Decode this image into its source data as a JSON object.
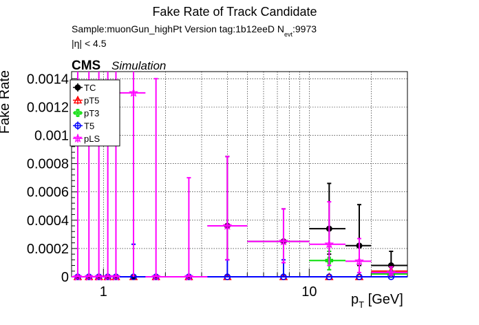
{
  "chart_data": {
    "type": "scatter",
    "title": "Fake Rate of Track Candidate",
    "subtitle_line1": "Sample:muonGun_highPt   Version tag:1b12eeD  N",
    "subtitle_nevt_sub": "evt",
    "subtitle_nevt_val": ":9973",
    "subtitle_line2": "|η| < 4.5",
    "cms_label": "CMS",
    "simulation_label": "Simulation",
    "ylabel": "Fake Rate",
    "xlabel_main": "p",
    "xlabel_sub": "T",
    "xlabel_unit": " [GeV]",
    "xscale": "log",
    "xlim": [
      0.7,
      30
    ],
    "ylim": [
      0,
      0.00145
    ],
    "grid": true,
    "legend_placement": "top-left",
    "y_ticks": [
      {
        "v": 0,
        "label": "0"
      },
      {
        "v": 0.0002,
        "label": "0.0002"
      },
      {
        "v": 0.0004,
        "label": "0.0004"
      },
      {
        "v": 0.0006,
        "label": "0.0006"
      },
      {
        "v": 0.0008,
        "label": "0.0008"
      },
      {
        "v": 0.001,
        "label": "0.001"
      },
      {
        "v": 0.0012,
        "label": "0.0012"
      },
      {
        "v": 0.0014,
        "label": "0.0014"
      }
    ],
    "x_ticks": [
      {
        "v": 1,
        "label": "1"
      },
      {
        "v": 10,
        "label": "10"
      }
    ],
    "series": [
      {
        "name": "TC",
        "color": "#000000",
        "marker": "filled-circle",
        "points": [
          {
            "x": 0.75,
            "xlo": 0.7,
            "xhi": 0.8,
            "y": 0,
            "ylo": 0,
            "yhi": 0
          },
          {
            "x": 0.85,
            "xlo": 0.8,
            "xhi": 0.9,
            "y": 0,
            "ylo": 0,
            "yhi": 0
          },
          {
            "x": 0.95,
            "xlo": 0.9,
            "xhi": 1.0,
            "y": 0,
            "ylo": 0,
            "yhi": 0
          },
          {
            "x": 1.05,
            "xlo": 1.0,
            "xhi": 1.1,
            "y": 0,
            "ylo": 0,
            "yhi": 0
          },
          {
            "x": 1.15,
            "xlo": 1.1,
            "xhi": 1.2,
            "y": 0,
            "ylo": 0,
            "yhi": 0
          },
          {
            "x": 1.4,
            "xlo": 1.2,
            "xhi": 1.6,
            "y": 0,
            "ylo": 0,
            "yhi": 0
          },
          {
            "x": 1.8,
            "xlo": 1.6,
            "xhi": 2.0,
            "y": 0,
            "ylo": 0,
            "yhi": 0
          },
          {
            "x": 2.6,
            "xlo": 2.0,
            "xhi": 3.2,
            "y": 0,
            "ylo": 0,
            "yhi": 0
          },
          {
            "x": 4,
            "xlo": 3.2,
            "xhi": 5.0,
            "y": 0.00036,
            "ylo": 0.00012,
            "yhi": 0.00085
          },
          {
            "x": 7.5,
            "xlo": 5.0,
            "xhi": 10.0,
            "y": 0.00025,
            "ylo": 0.0001,
            "yhi": 0.00048
          },
          {
            "x": 12.5,
            "xlo": 10.0,
            "xhi": 15.0,
            "y": 0.00034,
            "ylo": 0.00016,
            "yhi": 0.00066
          },
          {
            "x": 17.5,
            "xlo": 15.0,
            "xhi": 20.0,
            "y": 0.00022,
            "ylo": 8e-05,
            "yhi": 0.00051
          },
          {
            "x": 25,
            "xlo": 20.0,
            "xhi": 30.0,
            "y": 8e-05,
            "ylo": 2e-05,
            "yhi": 0.00018
          }
        ]
      },
      {
        "name": "pT5",
        "color": "#ff0000",
        "marker": "open-triangle",
        "points": [
          {
            "x": 0.75,
            "xlo": 0.7,
            "xhi": 0.8,
            "y": 0,
            "ylo": 0,
            "yhi": 0
          },
          {
            "x": 0.85,
            "xlo": 0.8,
            "xhi": 0.9,
            "y": 0,
            "ylo": 0,
            "yhi": 0
          },
          {
            "x": 0.95,
            "xlo": 0.9,
            "xhi": 1.0,
            "y": 0,
            "ylo": 0,
            "yhi": 0
          },
          {
            "x": 1.05,
            "xlo": 1.0,
            "xhi": 1.1,
            "y": 0,
            "ylo": 0,
            "yhi": 0
          },
          {
            "x": 1.15,
            "xlo": 1.1,
            "xhi": 1.2,
            "y": 0,
            "ylo": 0,
            "yhi": 0
          },
          {
            "x": 1.4,
            "xlo": 1.2,
            "xhi": 1.6,
            "y": 0,
            "ylo": 0,
            "yhi": 0
          },
          {
            "x": 1.8,
            "xlo": 1.6,
            "xhi": 2.0,
            "y": 0,
            "ylo": 0,
            "yhi": 0
          },
          {
            "x": 2.6,
            "xlo": 2.0,
            "xhi": 3.2,
            "y": 0,
            "ylo": 0,
            "yhi": 0
          },
          {
            "x": 4,
            "xlo": 3.2,
            "xhi": 5.0,
            "y": 0,
            "ylo": 0,
            "yhi": 0
          },
          {
            "x": 7.5,
            "xlo": 5.0,
            "xhi": 10.0,
            "y": 0,
            "ylo": 0,
            "yhi": 0
          },
          {
            "x": 12.5,
            "xlo": 10.0,
            "xhi": 15.0,
            "y": 0,
            "ylo": 0,
            "yhi": 0
          },
          {
            "x": 17.5,
            "xlo": 15.0,
            "xhi": 20.0,
            "y": 0,
            "ylo": 0,
            "yhi": 0
          },
          {
            "x": 25,
            "xlo": 20.0,
            "xhi": 30.0,
            "y": 4e-05,
            "ylo": 1e-05,
            "yhi": 7e-05
          }
        ]
      },
      {
        "name": "pT3",
        "color": "#00dd00",
        "marker": "open-cross",
        "points": [
          {
            "x": 12.5,
            "xlo": 10.0,
            "xhi": 15.0,
            "y": 0.000115,
            "ylo": 5e-05,
            "yhi": 0.00018
          },
          {
            "x": 25,
            "xlo": 20.0,
            "xhi": 30.0,
            "y": 2e-05,
            "ylo": 0.0,
            "yhi": 4e-05
          }
        ]
      },
      {
        "name": "T5",
        "color": "#0000ff",
        "marker": "open-circle",
        "points": [
          {
            "x": 0.75,
            "xlo": 0.7,
            "xhi": 0.8,
            "y": 0,
            "ylo": 0,
            "yhi": 0
          },
          {
            "x": 0.85,
            "xlo": 0.8,
            "xhi": 0.9,
            "y": 0,
            "ylo": 0,
            "yhi": 0
          },
          {
            "x": 0.95,
            "xlo": 0.9,
            "xhi": 1.0,
            "y": 0,
            "ylo": 0,
            "yhi": 0
          },
          {
            "x": 1.05,
            "xlo": 1.0,
            "xhi": 1.1,
            "y": 0,
            "ylo": 0,
            "yhi": 0
          },
          {
            "x": 1.15,
            "xlo": 1.1,
            "xhi": 1.2,
            "y": 0,
            "ylo": 0,
            "yhi": 0
          },
          {
            "x": 1.4,
            "xlo": 1.2,
            "xhi": 1.6,
            "y": 0,
            "ylo": 0,
            "yhi": 0.00023
          },
          {
            "x": 1.8,
            "xlo": 1.6,
            "xhi": 2.0,
            "y": 0,
            "ylo": 0,
            "yhi": 0
          },
          {
            "x": 2.6,
            "xlo": 2.0,
            "xhi": 3.2,
            "y": 0,
            "ylo": 0,
            "yhi": 0
          },
          {
            "x": 4,
            "xlo": 3.2,
            "xhi": 5.0,
            "y": 0,
            "ylo": 0,
            "yhi": 0.00012
          },
          {
            "x": 7.5,
            "xlo": 5.0,
            "xhi": 10.0,
            "y": 0,
            "ylo": 0,
            "yhi": 0.00012
          },
          {
            "x": 12.5,
            "xlo": 10.0,
            "xhi": 15.0,
            "y": 0,
            "ylo": 0,
            "yhi": 0
          },
          {
            "x": 17.5,
            "xlo": 15.0,
            "xhi": 20.0,
            "y": 0,
            "ylo": 0,
            "yhi": 0
          },
          {
            "x": 25,
            "xlo": 20.0,
            "xhi": 30.0,
            "y": 0,
            "ylo": 0,
            "yhi": 0
          }
        ]
      },
      {
        "name": "pLS",
        "color": "#ff00ff",
        "marker": "open-star",
        "points": [
          {
            "x": 0.75,
            "xlo": 0.7,
            "xhi": 0.8,
            "y": 0,
            "ylo": 0,
            "yhi": 0.0015
          },
          {
            "x": 0.85,
            "xlo": 0.8,
            "xhi": 0.9,
            "y": 0,
            "ylo": 0,
            "yhi": 0.0015
          },
          {
            "x": 0.95,
            "xlo": 0.9,
            "xhi": 1.0,
            "y": 0,
            "ylo": 0,
            "yhi": 0.0015
          },
          {
            "x": 1.05,
            "xlo": 1.0,
            "xhi": 1.1,
            "y": 0,
            "ylo": 0,
            "yhi": 0.0015
          },
          {
            "x": 1.15,
            "xlo": 1.1,
            "xhi": 1.2,
            "y": 0,
            "ylo": 0,
            "yhi": 0.0015
          },
          {
            "x": 1.4,
            "xlo": 1.2,
            "xhi": 1.6,
            "y": 0.0013,
            "ylo": 0,
            "yhi": 0.0015
          },
          {
            "x": 1.8,
            "xlo": 1.6,
            "xhi": 2.0,
            "y": 0,
            "ylo": 0,
            "yhi": 0.0014
          },
          {
            "x": 2.6,
            "xlo": 2.0,
            "xhi": 3.2,
            "y": 0,
            "ylo": 0,
            "yhi": 0.0007
          },
          {
            "x": 4,
            "xlo": 3.2,
            "xhi": 5.0,
            "y": 0.00036,
            "ylo": 0.00012,
            "yhi": 0.00085
          },
          {
            "x": 7.5,
            "xlo": 5.0,
            "xhi": 10.0,
            "y": 0.00025,
            "ylo": 0.0001,
            "yhi": 0.00048
          },
          {
            "x": 12.5,
            "xlo": 10.0,
            "xhi": 15.0,
            "y": 0.00023,
            "ylo": 8e-05,
            "yhi": 0.00053
          },
          {
            "x": 17.5,
            "xlo": 15.0,
            "xhi": 20.0,
            "y": 0.00011,
            "ylo": 3e-05,
            "yhi": 0.00027
          },
          {
            "x": 25,
            "xlo": 20.0,
            "xhi": 30.0,
            "y": 3e-05,
            "ylo": 0.0,
            "yhi": 7e-05
          }
        ]
      }
    ]
  }
}
